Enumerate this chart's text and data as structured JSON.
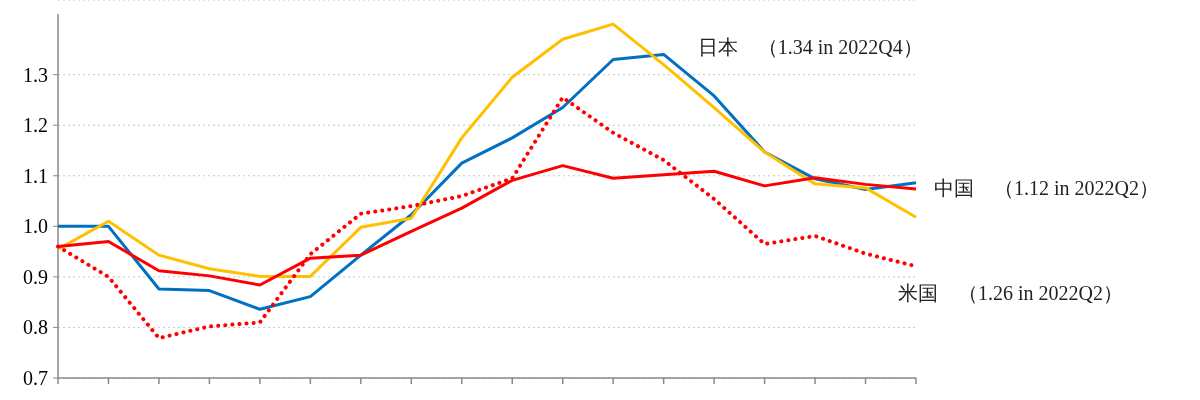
{
  "chart_data": {
    "type": "line",
    "categories": [
      null,
      null,
      null,
      null,
      null,
      null,
      null,
      null,
      null,
      null,
      null,
      null,
      null,
      null,
      null,
      null,
      null,
      null
    ],
    "series": [
      {
        "name": "日本　（1.34 in 2022Q4）",
        "color": "#0070c0",
        "values": [
          1.0,
          1.0,
          0.876,
          0.873,
          0.836,
          0.861,
          0.943,
          1.023,
          1.125,
          1.175,
          1.235,
          1.33,
          1.34,
          1.258,
          1.147,
          1.094,
          1.073,
          1.086
        ]
      },
      {
        "color": "#ffc000",
        "values": [
          0.955,
          1.01,
          0.943,
          0.916,
          0.901,
          0.901,
          0.998,
          1.016,
          1.175,
          1.295,
          1.37,
          1.4,
          1.32,
          1.235,
          1.147,
          1.084,
          1.076,
          1.018
        ]
      },
      {
        "name": "中国　（1.12 in 2022Q2）",
        "color": "#ff0000",
        "values": [
          0.96,
          0.97,
          0.912,
          0.902,
          0.884,
          0.937,
          0.943,
          0.99,
          1.036,
          1.091,
          1.12,
          1.095,
          1.102,
          1.109,
          1.08,
          1.096,
          1.083,
          1.074
        ]
      },
      {
        "name": "米国　（1.26 in 2022Q2）",
        "color": "#ff0000",
        "line_style": "dotted",
        "values": [
          0.96,
          0.9,
          0.779,
          0.802,
          0.81,
          0.945,
          1.025,
          1.04,
          1.06,
          1.095,
          1.255,
          1.185,
          1.131,
          1.054,
          0.965,
          0.981,
          0.946,
          0.921
        ]
      }
    ],
    "ylim": [
      0.7,
      1.42
    ],
    "yticks": [
      0.7,
      0.8,
      0.9,
      {
        "value": 1,
        "label": "1.0"
      },
      1.1,
      1.2,
      1.3
    ],
    "grid": "y",
    "tick_labels": "y",
    "marker": "none"
  }
}
